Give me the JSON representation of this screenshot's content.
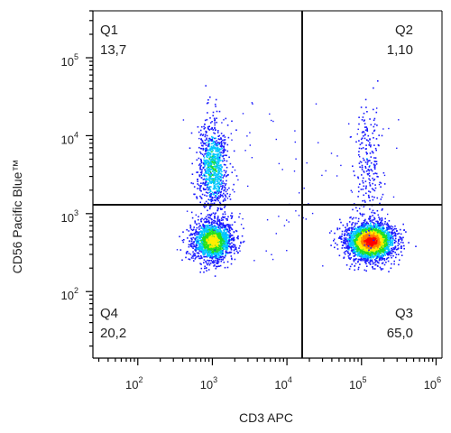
{
  "chart_data": {
    "type": "scatter",
    "title": "",
    "xlabel": "CD3 APC",
    "ylabel": "CD56 Pacific Blue™",
    "x_scale": "log",
    "y_scale": "log",
    "xlim": [
      25,
      1200000
    ],
    "ylim": [
      14,
      400000
    ],
    "x_ticks": [
      {
        "value": 100,
        "base": "10",
        "exp": "2"
      },
      {
        "value": 1000,
        "base": "10",
        "exp": "3"
      },
      {
        "value": 10000,
        "base": "10",
        "exp": "4"
      },
      {
        "value": 100000,
        "base": "10",
        "exp": "5"
      },
      {
        "value": 1000000,
        "base": "10",
        "exp": "6"
      }
    ],
    "y_ticks": [
      {
        "value": 100,
        "base": "10",
        "exp": "2"
      },
      {
        "value": 1000,
        "base": "10",
        "exp": "3"
      },
      {
        "value": 10000,
        "base": "10",
        "exp": "4"
      },
      {
        "value": 100000,
        "base": "10",
        "exp": "5"
      }
    ],
    "gate": {
      "x": 16000,
      "y": 1300
    },
    "quadrants": [
      {
        "name": "Q1",
        "value": "13,7",
        "position": "top-left"
      },
      {
        "name": "Q2",
        "value": "1,10",
        "position": "top-right"
      },
      {
        "name": "Q3",
        "value": "65,0",
        "position": "bottom-right"
      },
      {
        "name": "Q4",
        "value": "20,2",
        "position": "bottom-left"
      }
    ],
    "populations": [
      {
        "center": [
          1000,
          4000
        ],
        "spread_log": [
          0.1,
          0.3
        ],
        "density": "medium"
      },
      {
        "center": [
          1000,
          450
        ],
        "spread_log": [
          0.14,
          0.13
        ],
        "density": "high"
      },
      {
        "center": [
          130000,
          450
        ],
        "spread_log": [
          0.16,
          0.12
        ],
        "density": "very high"
      },
      {
        "center": [
          120000,
          4000
        ],
        "spread_log": [
          0.08,
          0.4
        ],
        "density": "low"
      }
    ],
    "colormap": [
      "#1a1aff",
      "#00c8ff",
      "#20e020",
      "#ffee00",
      "#ff8000",
      "#ff0000"
    ],
    "grid": false,
    "legend": "none"
  }
}
